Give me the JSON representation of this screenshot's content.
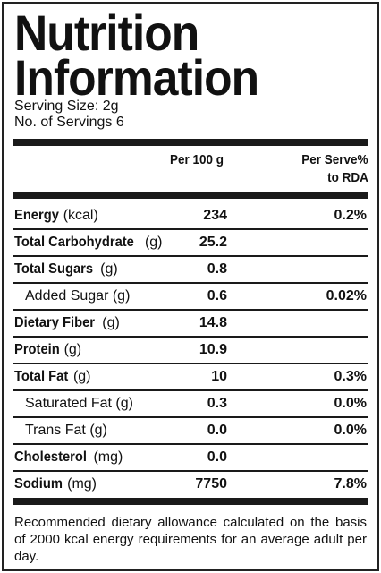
{
  "header": {
    "title_line1": "Nutrition",
    "title_line2": "Information",
    "serving_size": "Serving Size: 2g",
    "servings": "No. of Servings 6"
  },
  "table": {
    "columns": {
      "per100": "Per 100 g",
      "perserve_line1": "Per Serve%",
      "perserve_line2": "to RDA"
    },
    "rows": [
      {
        "name": "Energy",
        "unit": "(kcal)",
        "per100": "234",
        "rda": "0.2%"
      },
      {
        "name": "Total Carbohydrate",
        "unit": "(g)",
        "per100": "25.2"
      },
      {
        "name": "Total Sugars",
        "unit": "(g)",
        "per100": "0.8"
      },
      {
        "name": "Added Sugar (g)",
        "indent": true,
        "per100": "0.6",
        "rda": "0.02%"
      },
      {
        "name": "Dietary Fiber",
        "unit": "(g)",
        "per100": "14.8"
      },
      {
        "name": "Protein",
        "unit": "(g)",
        "per100": "10.9"
      },
      {
        "name": "Total Fat",
        "unit": "(g)",
        "per100": "10",
        "rda": "0.3%"
      },
      {
        "name": "Saturated Fat (g)",
        "indent": true,
        "per100": "0.3",
        "rda": "0.0%"
      },
      {
        "name": "Trans Fat (g)",
        "indent": true,
        "per100": "0.0",
        "rda": "0.0%"
      },
      {
        "name": "Cholesterol",
        "unit": "(mg)",
        "per100": "0.0"
      },
      {
        "name": "Sodium",
        "unit": "(mg)",
        "per100": "7750",
        "rda": "7.8%"
      }
    ]
  },
  "footer": {
    "note": "Recommended dietary allowance calculated on the basis of 2000 kcal energy requirements for an average adult per day."
  }
}
